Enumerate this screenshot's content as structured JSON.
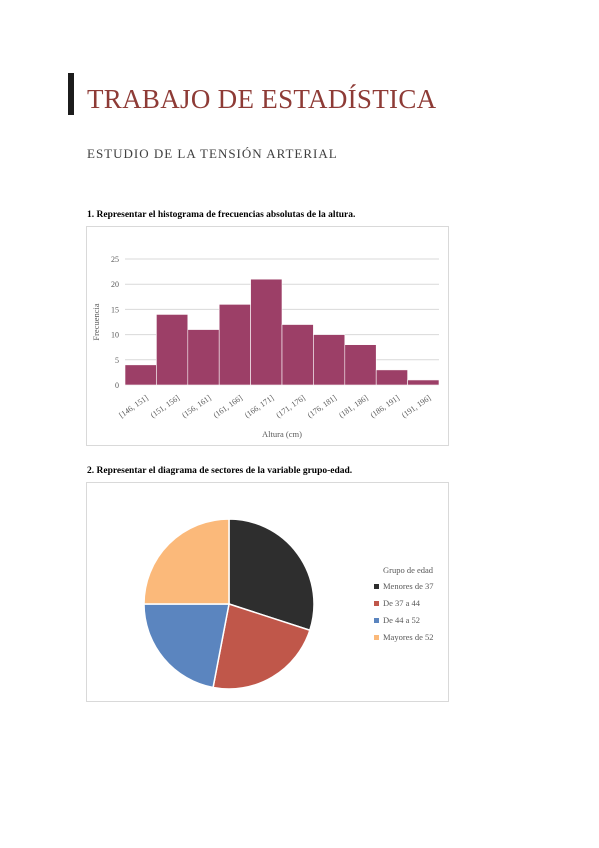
{
  "header": {
    "title": "TRABAJO DE ESTADÍSTICA",
    "subtitle": "ESTUDIO DE LA TENSIÓN ARTERIAL"
  },
  "questions": {
    "q1": "1. Representar el histograma de frecuencias absolutas de la altura.",
    "q2": "2. Representar el diagrama de sectores de la variable grupo-edad."
  },
  "chart_data": [
    {
      "type": "bar",
      "categories": [
        "[146, 151]",
        "(151, 156]",
        "(156, 161]",
        "(161, 166]",
        "(166, 171]",
        "(171, 176]",
        "(176, 181]",
        "(181, 186]",
        "(186, 191]",
        "(191, 196]"
      ],
      "values": [
        4,
        14,
        11,
        16,
        21,
        12,
        10,
        8,
        3,
        1
      ],
      "title": "",
      "xlabel": "Altura (cm)",
      "ylabel": "Frecuencia",
      "ylim": [
        0,
        25
      ],
      "yticks": [
        0,
        5,
        10,
        15,
        20,
        25
      ],
      "grid": true,
      "color": "#9c3f67"
    },
    {
      "type": "pie",
      "legend_title": "Grupo de edad",
      "legend_position": "right",
      "categories": [
        "Menores de 37",
        "De 37 a 44",
        "De 44 a 52",
        "Mayores de 52"
      ],
      "values": [
        30,
        23,
        22,
        25
      ],
      "colors": [
        "#2e2e2e",
        "#c0574a",
        "#5b85bf",
        "#fbb97a"
      ]
    }
  ]
}
